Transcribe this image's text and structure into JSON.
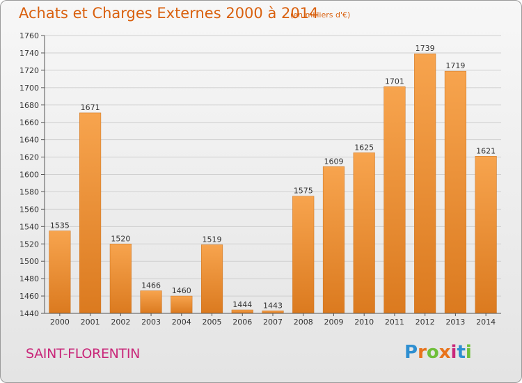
{
  "header": {
    "title": "Achats et Charges Externes 2000 à 2014",
    "subtitle": "(en milliers d'€)"
  },
  "footer": {
    "commune": "SAINT-FLORENTIN",
    "logo": "Proxiti"
  },
  "colors": {
    "bar_light": "#f7a44e",
    "bar_dark": "#db7a1f",
    "title": "#d9600e",
    "commune": "#c9287a",
    "logo": [
      "#2e8fd1",
      "#e8731c",
      "#6fbf3a",
      "#e8731c",
      "#c9287a",
      "#2e8fd1",
      "#6fbf3a"
    ]
  },
  "chart_data": {
    "type": "bar",
    "title": "Achats et Charges Externes 2000 à 2014",
    "subtitle": "(en milliers d'€)",
    "categories": [
      "2000",
      "2001",
      "2002",
      "2003",
      "2004",
      "2005",
      "2006",
      "2007",
      "2008",
      "2009",
      "2010",
      "2011",
      "2012",
      "2013",
      "2014"
    ],
    "values": [
      1535,
      1671,
      1520,
      1466,
      1460,
      1519,
      1444,
      1443,
      1575,
      1609,
      1625,
      1701,
      1739,
      1719,
      1621
    ],
    "ylim": [
      1440,
      1760
    ],
    "yticks": [
      1440,
      1460,
      1480,
      1500,
      1520,
      1540,
      1560,
      1580,
      1600,
      1620,
      1640,
      1660,
      1680,
      1700,
      1720,
      1740,
      1760
    ],
    "grid": true
  }
}
